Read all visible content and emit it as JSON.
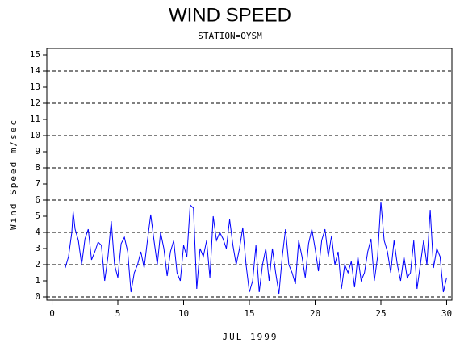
{
  "chart_data": {
    "type": "line",
    "title": "WIND SPEED",
    "subtitle": "STATION=OYSM",
    "x_label": "JUL 1999",
    "y_label": "Wind Speed m/sec",
    "xlim": [
      -0.4,
      30.4
    ],
    "ylim": [
      -0.2,
      15.4
    ],
    "xticks": [
      0,
      5,
      10,
      15,
      20,
      25,
      30
    ],
    "yticks": [
      0,
      1,
      2,
      3,
      4,
      5,
      6,
      7,
      8,
      9,
      10,
      11,
      12,
      13,
      14,
      15
    ],
    "grid_lines": [
      0,
      2,
      4,
      6,
      8,
      10,
      12,
      14
    ],
    "color": "#0000ff",
    "x": [
      1.0,
      1.25,
      1.5,
      1.6,
      1.75,
      2.0,
      2.25,
      2.5,
      2.75,
      3.0,
      3.25,
      3.5,
      3.75,
      4.0,
      4.25,
      4.5,
      4.75,
      5.0,
      5.25,
      5.5,
      5.75,
      6.0,
      6.25,
      6.5,
      6.75,
      7.0,
      7.25,
      7.5,
      7.75,
      8.0,
      8.25,
      8.5,
      8.75,
      9.0,
      9.25,
      9.5,
      9.75,
      10.0,
      10.25,
      10.5,
      10.75,
      11.0,
      11.25,
      11.5,
      11.75,
      12.0,
      12.25,
      12.5,
      12.75,
      13.0,
      13.25,
      13.5,
      13.75,
      14.0,
      14.25,
      14.5,
      14.75,
      15.0,
      15.25,
      15.5,
      15.75,
      16.0,
      16.25,
      16.5,
      16.75,
      17.0,
      17.25,
      17.5,
      17.75,
      18.0,
      18.25,
      18.5,
      18.75,
      19.0,
      19.25,
      19.5,
      19.75,
      20.0,
      20.25,
      20.5,
      20.75,
      21.0,
      21.25,
      21.5,
      21.75,
      22.0,
      22.25,
      22.5,
      22.75,
      23.0,
      23.25,
      23.5,
      23.75,
      24.0,
      24.25,
      24.5,
      24.75,
      25.0,
      25.25,
      25.5,
      25.75,
      26.0,
      26.25,
      26.5,
      26.75,
      27.0,
      27.25,
      27.5,
      27.75,
      28.0,
      28.25,
      28.5,
      28.75,
      29.0,
      29.25,
      29.5,
      29.75,
      30.0
    ],
    "values": [
      1.8,
      2.5,
      4.0,
      5.3,
      4.2,
      3.5,
      2.0,
      3.6,
      4.2,
      2.3,
      2.8,
      3.4,
      3.2,
      1.0,
      2.5,
      4.7,
      2.0,
      1.2,
      3.3,
      3.7,
      2.8,
      0.3,
      1.5,
      2.0,
      2.8,
      1.8,
      3.5,
      5.1,
      3.5,
      2.0,
      4.0,
      3.0,
      1.3,
      2.8,
      3.5,
      1.5,
      1.0,
      3.2,
      2.5,
      5.7,
      5.5,
      0.5,
      3.0,
      2.5,
      3.5,
      1.2,
      5.0,
      3.5,
      4.0,
      3.6,
      3.0,
      4.8,
      3.2,
      2.0,
      3.0,
      4.3,
      2.0,
      0.3,
      1.0,
      3.2,
      0.3,
      2.0,
      3.0,
      1.0,
      3.0,
      1.5,
      0.2,
      2.5,
      4.2,
      2.0,
      1.5,
      0.8,
      3.5,
      2.5,
      1.2,
      3.3,
      4.2,
      3.0,
      1.6,
      3.5,
      4.2,
      2.5,
      3.8,
      2.0,
      2.8,
      0.5,
      2.0,
      1.5,
      2.2,
      0.6,
      2.5,
      1.0,
      1.5,
      2.8,
      3.6,
      1.0,
      2.5,
      5.9,
      3.5,
      2.8,
      1.5,
      3.5,
      2.0,
      1.0,
      2.5,
      1.2,
      1.5,
      3.5,
      0.5,
      2.0,
      3.5,
      2.0,
      5.4,
      1.8,
      3.0,
      2.5,
      0.3,
      1.2
    ]
  }
}
